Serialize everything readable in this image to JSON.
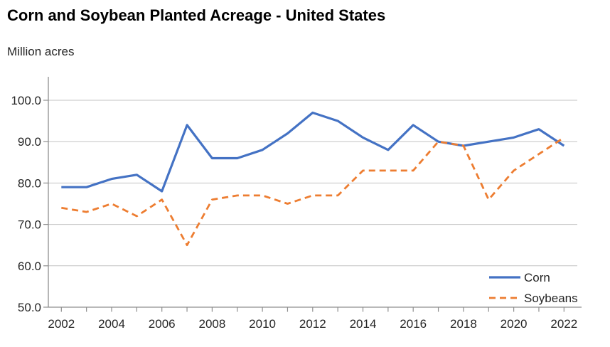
{
  "page": {
    "title": "Corn and Soybean Planted Acreage - United States",
    "units_label": "Million acres"
  },
  "chart_data": {
    "type": "line",
    "title": "Corn and Soybean Planted Acreage - United States",
    "ylabel": "Million acres",
    "xlabel": "",
    "grid": "horizontal",
    "legend_position": "bottom-right",
    "ylim": [
      50,
      105
    ],
    "yticks": [
      50,
      60,
      70,
      80,
      90,
      100
    ],
    "ytick_labels": [
      "50.0",
      "60.0",
      "70.0",
      "80.0",
      "90.0",
      "100.0"
    ],
    "x": [
      2002,
      2003,
      2004,
      2005,
      2006,
      2007,
      2008,
      2009,
      2010,
      2011,
      2012,
      2013,
      2014,
      2015,
      2016,
      2017,
      2018,
      2019,
      2020,
      2021,
      2022
    ],
    "x_tick_labels": [
      "2002",
      "2004",
      "2006",
      "2008",
      "2010",
      "2012",
      "2014",
      "2016",
      "2018",
      "2020",
      "2022"
    ],
    "series": [
      {
        "name": "Corn",
        "style": "solid",
        "color": "#4472C4",
        "values": [
          79,
          79,
          81,
          82,
          78,
          94,
          86,
          86,
          88,
          92,
          97,
          95,
          91,
          88,
          94,
          90,
          89,
          90,
          91,
          93,
          89
        ]
      },
      {
        "name": "Soybeans",
        "style": "dashed",
        "color": "#ED7D31",
        "values": [
          74,
          73,
          75,
          72,
          76,
          65,
          76,
          77,
          77,
          75,
          77,
          77,
          83,
          83,
          83,
          90,
          89,
          76,
          83,
          87,
          91
        ]
      }
    ]
  },
  "colors": {
    "axis": "#8f8f8f",
    "gridline": "#c3c3c3",
    "tick_text": "#262626",
    "title_text": "#000000",
    "background": "#ffffff"
  }
}
